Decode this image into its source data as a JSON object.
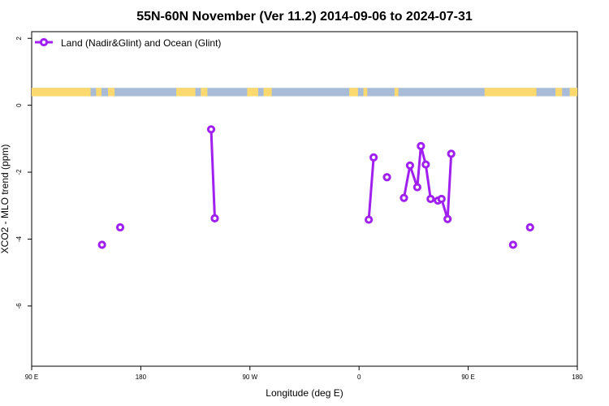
{
  "chart_data": {
    "type": "line",
    "title": "55N-60N November (Ver 11.2)   2014-09-06 to 2024-07-31",
    "xlabel": "Longitude (deg E)",
    "ylabel": "XCO2 - MLO trend (ppm)",
    "xlim": [
      90,
      540
    ],
    "ylim": [
      -7.8,
      2.2
    ],
    "x_ticks": [
      {
        "value": 90,
        "label": "90 E"
      },
      {
        "value": 180,
        "label": "180"
      },
      {
        "value": 270,
        "label": "90 W"
      },
      {
        "value": 360,
        "label": "0"
      },
      {
        "value": 450,
        "label": "90 E"
      },
      {
        "value": 540,
        "label": "180"
      }
    ],
    "y_ticks": [
      {
        "value": 2,
        "label": "2"
      },
      {
        "value": 0,
        "label": "0"
      },
      {
        "value": -2,
        "label": "-2"
      },
      {
        "value": -4,
        "label": "-4"
      },
      {
        "value": -6,
        "label": "-6"
      }
    ],
    "legend": {
      "position": "top-left"
    },
    "series": [
      {
        "name": "Land (Nadir&Glint) and Ocean (Glint)",
        "color": "#a020f0",
        "segments": [
          [
            {
              "x": 148,
              "y": -4.17
            }
          ],
          [
            {
              "x": 163,
              "y": -3.65
            }
          ],
          [
            {
              "x": 238,
              "y": -0.72
            },
            {
              "x": 241,
              "y": -3.38
            }
          ],
          [
            {
              "x": 368,
              "y": -3.42
            },
            {
              "x": 372,
              "y": -1.56
            }
          ],
          [
            {
              "x": 383,
              "y": -2.15
            }
          ],
          [
            {
              "x": 397,
              "y": -2.77
            },
            {
              "x": 402,
              "y": -1.8
            },
            {
              "x": 408,
              "y": -2.45
            },
            {
              "x": 411,
              "y": -1.22
            },
            {
              "x": 415,
              "y": -1.77
            },
            {
              "x": 419,
              "y": -2.8
            },
            {
              "x": 425,
              "y": -2.85
            },
            {
              "x": 428,
              "y": -2.8
            },
            {
              "x": 433,
              "y": -3.4
            },
            {
              "x": 436,
              "y": -1.45
            }
          ]
        ],
        "extra_points": [
          {
            "x": 487,
            "y": -4.17
          },
          {
            "x": 501,
            "y": -3.65
          }
        ]
      }
    ],
    "map_strip": {
      "ocean_color": "#a8bcd8",
      "land_color": "#fbd96f"
    }
  }
}
